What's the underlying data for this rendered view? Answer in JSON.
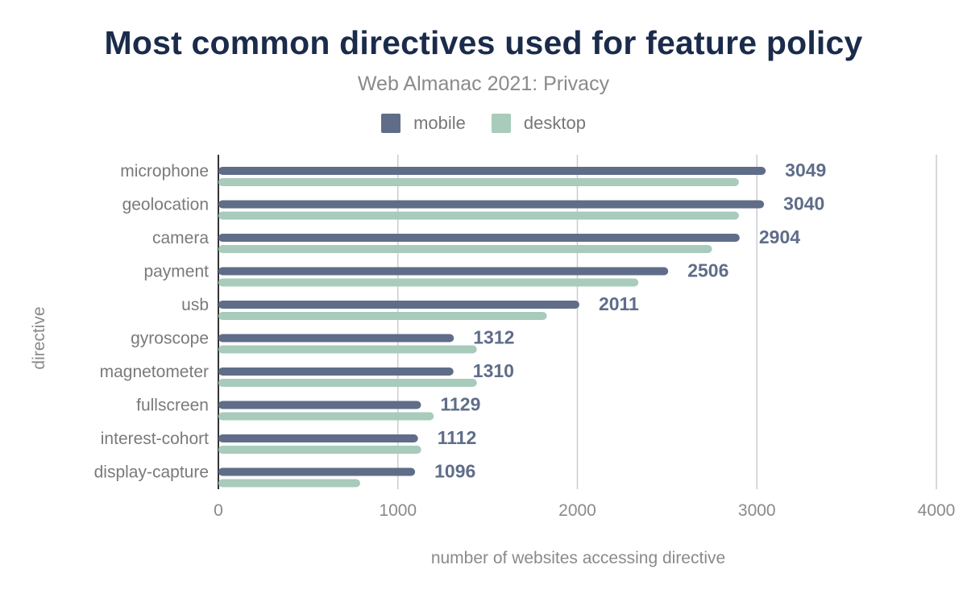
{
  "chart_data": {
    "type": "bar",
    "orientation": "horizontal",
    "title": "Most common directives used for feature policy",
    "subtitle": "Web Almanac 2021: Privacy",
    "xlabel": "number of websites accessing directive",
    "ylabel": "directive",
    "xlim": [
      0,
      4000
    ],
    "xticks": [
      0,
      1000,
      2000,
      3000,
      4000
    ],
    "grid": true,
    "legend_position": "top",
    "categories": [
      "microphone",
      "geolocation",
      "camera",
      "payment",
      "usb",
      "gyroscope",
      "magnetometer",
      "fullscreen",
      "interest-cohort",
      "display-capture"
    ],
    "series": [
      {
        "name": "mobile",
        "color": "#5f6d88",
        "values": [
          3049,
          3040,
          2904,
          2506,
          2011,
          1312,
          1310,
          1129,
          1112,
          1096
        ],
        "labels": [
          "3049",
          "3040",
          "2904",
          "2506",
          "2011",
          "1312",
          "1310",
          "1129",
          "1112",
          "1096"
        ]
      },
      {
        "name": "desktop",
        "color": "#a8cbbb",
        "values": [
          2900,
          2900,
          2750,
          2340,
          1830,
          1440,
          1440,
          1200,
          1130,
          790
        ]
      }
    ]
  }
}
